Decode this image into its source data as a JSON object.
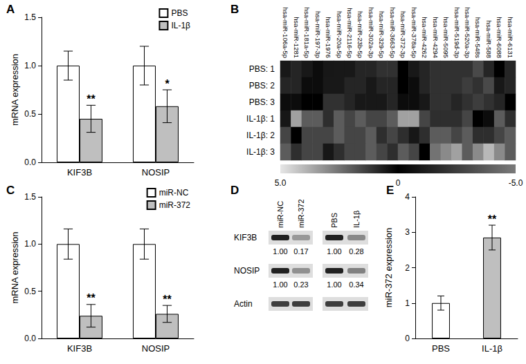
{
  "chart_data": [
    {
      "type": "bar",
      "title": "A",
      "y_label": "mRNA expression",
      "categories": [
        "KIF3B",
        "NOSIP"
      ],
      "series": [
        {
          "name": "PBS",
          "color": "#ffffff",
          "values": [
            1.0,
            1.0
          ],
          "errors": [
            0.15,
            0.2
          ],
          "annotations": [
            null,
            null
          ]
        },
        {
          "name": "IL-1β",
          "color": "#bfbfbf",
          "values": [
            0.45,
            0.58
          ],
          "errors": [
            0.14,
            0.17
          ],
          "annotations": [
            "**",
            "*"
          ]
        }
      ],
      "ylim": [
        0,
        1.5
      ],
      "yticks": [
        {
          "value": 0,
          "label": "0.0"
        },
        {
          "value": 0.5,
          "label": "0.5"
        },
        {
          "value": 1,
          "label": "1.0"
        },
        {
          "value": 1.5,
          "label": "1.5"
        }
      ],
      "grid": false,
      "legend": "upper right"
    },
    {
      "type": "heatmap",
      "title": "B",
      "columns": [
        "hsa-miR-106a-5p",
        "hsa-miR-1281",
        "hsa-miR-181a-5p",
        "hsa-miR-197-3p",
        "hsa-miR-1976",
        "hsa-miR-20a-5p",
        "hsa-miR-2116-5p",
        "hsa-miR-23b-5p",
        "hsa-miR-302a-3p",
        "hsa-miR-329-5p",
        "hsa-miR-3663-5p",
        "hsa-miR-372-3p",
        "hsa-miR-378a-5p",
        "hsa-miR-4262",
        "hsa-miR-4294",
        "hsa-miR-5095",
        "hsa-miR-519d-3p",
        "hsa-miR-520a-3p",
        "hsa-miR-548s",
        "hsa-miR-588",
        "hsa-miR-6088",
        "hsa-miR-6131"
      ],
      "rows": [
        "PBS: 1",
        "PBS: 2",
        "PBS: 3",
        "IL-1β: 1",
        "IL-1β: 2",
        "IL-1β: 3"
      ],
      "cells": [
        [
          -1,
          -1.5,
          -1,
          -0.5,
          0.5,
          -1,
          -1,
          -1.5,
          -1.5,
          -2,
          -2,
          0,
          -1,
          -1.5,
          -2,
          -2,
          -2,
          -2,
          -3,
          -1.5,
          0,
          -1.5
        ],
        [
          -1.5,
          -1.5,
          -0.5,
          -0.5,
          -1,
          -1,
          -1.5,
          -1.5,
          -1,
          -1.5,
          -1.5,
          0,
          -0.5,
          -1.5,
          -2,
          -2,
          -2,
          -2.5,
          -2,
          -3,
          -1,
          -1.5
        ],
        [
          -0.5,
          -0.5,
          0,
          0,
          -2,
          -2,
          -1.5,
          -1,
          -1,
          -1,
          -1.5,
          -0.5,
          -0.5,
          -1,
          -2,
          -2,
          -1.5,
          -2,
          -2.5,
          -2,
          -1.5,
          0
        ],
        [
          0.5,
          3.5,
          2,
          2,
          1,
          2,
          1.5,
          2,
          1.5,
          1.5,
          2,
          3.5,
          3.5,
          1.5,
          1,
          1,
          1,
          1.5,
          0,
          -0.5,
          2,
          1
        ],
        [
          1.5,
          0,
          1.5,
          1.5,
          1.5,
          2,
          1.5,
          1.5,
          2,
          1,
          1.5,
          1,
          0.5,
          1,
          2,
          2,
          1.5,
          2,
          1,
          1,
          1.5,
          2
        ],
        [
          2,
          1,
          1.5,
          1.5,
          0.5,
          1,
          1.5,
          1.5,
          2,
          1.5,
          1,
          2,
          1.5,
          0,
          2.5,
          3,
          3.5,
          2,
          3,
          4,
          3,
          2
        ]
      ],
      "colorbar": {
        "range": [
          -5,
          5
        ],
        "ticks": [
          {
            "value": 5,
            "label": "5.0"
          },
          0,
          {
            "value": -5,
            "label": "-5.0"
          }
        ]
      }
    },
    {
      "type": "bar",
      "title": "C",
      "y_label": "mRNA expression",
      "categories": [
        "KIF3B",
        "NOSIP"
      ],
      "series": [
        {
          "name": "miR-NC",
          "color": "#ffffff",
          "values": [
            1.0,
            1.0
          ],
          "errors": [
            0.16,
            0.16
          ],
          "annotations": [
            null,
            null
          ]
        },
        {
          "name": "miR-372",
          "color": "#bfbfbf",
          "values": [
            0.24,
            0.26
          ],
          "errors": [
            0.12,
            0.09
          ],
          "annotations": [
            "**",
            "**"
          ]
        }
      ],
      "ylim": [
        0,
        1.5
      ],
      "yticks": [
        {
          "value": 0,
          "label": "0.0"
        },
        {
          "value": 0.5,
          "label": "0.5"
        },
        {
          "value": 1,
          "label": "1.0"
        },
        {
          "value": 1.5,
          "label": "1.5"
        }
      ],
      "grid": false,
      "legend": "upper right"
    },
    {
      "type": "blot",
      "title": "D",
      "lanes": [
        [
          "miR-NC",
          "miR-372"
        ],
        [
          "PBS",
          "IL-1β"
        ]
      ],
      "rows": [
        {
          "name": "KIF3B",
          "values": [
            [
              1,
              0.17
            ],
            [
              1,
              0.28
            ]
          ],
          "value_labels": [
            [
              "1.00",
              "0.17"
            ],
            [
              "1.00",
              "0.28"
            ]
          ]
        },
        {
          "name": "NOSIP",
          "values": [
            [
              1,
              0.23
            ],
            [
              1,
              0.34
            ]
          ],
          "value_labels": [
            [
              "1.00",
              "0.23"
            ],
            [
              "1.00",
              "0.34"
            ]
          ]
        },
        {
          "name": "Actin",
          "values": null,
          "value_labels": null
        }
      ]
    },
    {
      "type": "bar",
      "title": "E",
      "y_label": "miR-372 expression",
      "categories": [
        "PBS",
        "IL-1β"
      ],
      "values": [
        1.0,
        2.85
      ],
      "errors": [
        0.2,
        0.35
      ],
      "annotations": [
        null,
        "**"
      ],
      "colors": [
        "#ffffff",
        "#bfbfbf"
      ],
      "ylim": [
        0,
        4
      ],
      "yticks": [
        0,
        1,
        2,
        3,
        4
      ],
      "grid": false
    }
  ]
}
